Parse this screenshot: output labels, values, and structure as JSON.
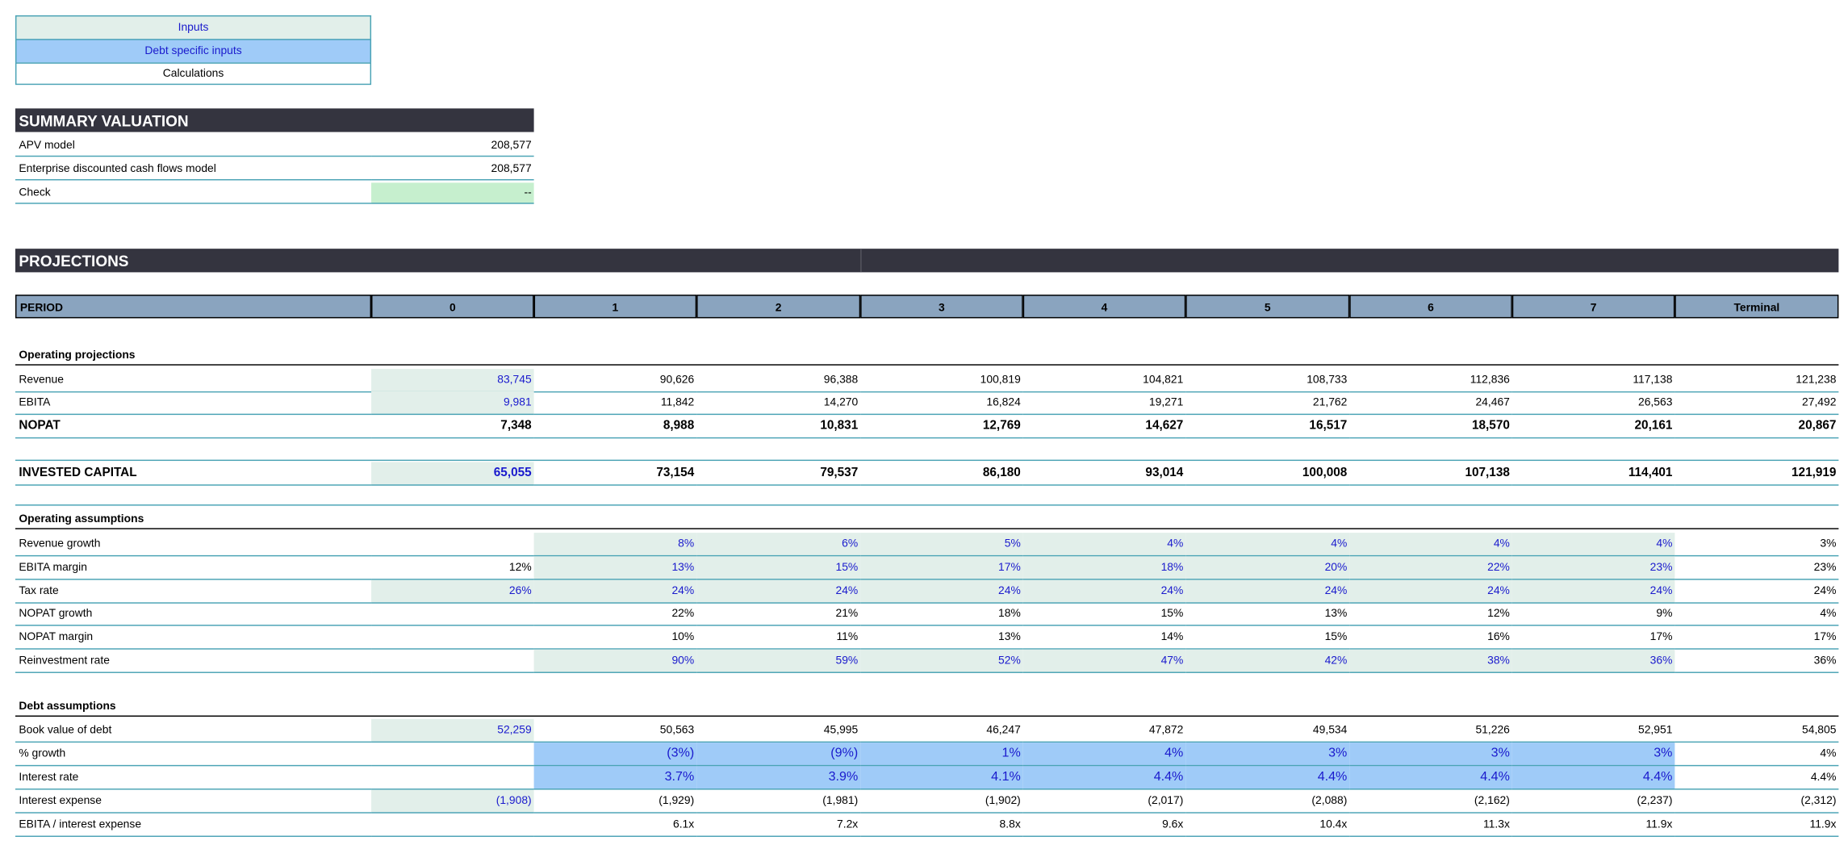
{
  "legend": [
    "Inputs",
    "Debt specific inputs",
    "Calculations"
  ],
  "summary": {
    "title": "SUMMARY VALUATION",
    "rows": [
      [
        "APV model",
        "208,577"
      ],
      [
        "Enterprise discounted cash flows model",
        "208,577"
      ],
      [
        "Check",
        "--"
      ]
    ]
  },
  "projections": {
    "title": "PROJECTIONS",
    "header": [
      "PERIOD",
      "0",
      "1",
      "2",
      "3",
      "4",
      "5",
      "6",
      "7",
      "Terminal"
    ],
    "blocks": [
      {
        "title": "Operating projections",
        "rows": [
          {
            "label": "Revenue",
            "values": [
              "83,745",
              "90,626",
              "96,388",
              "100,819",
              "104,821",
              "108,733",
              "112,836",
              "117,138",
              "121,238"
            ]
          },
          {
            "label": "EBITA",
            "values": [
              "9,981",
              "11,842",
              "14,270",
              "16,824",
              "19,271",
              "21,762",
              "24,467",
              "26,563",
              "27,492"
            ]
          },
          {
            "label": "NOPAT",
            "values": [
              "7,348",
              "8,988",
              "10,831",
              "12,769",
              "14,627",
              "16,517",
              "18,570",
              "20,161",
              "20,867"
            ]
          }
        ]
      },
      {
        "rows": [
          {
            "label": "INVESTED CAPITAL",
            "values": [
              "65,055",
              "73,154",
              "79,537",
              "86,180",
              "93,014",
              "100,008",
              "107,138",
              "114,401",
              "121,919"
            ]
          }
        ]
      },
      {
        "title": "Operating assumptions",
        "rows": [
          {
            "label": "Revenue growth",
            "values": [
              null,
              "8%",
              "6%",
              "5%",
              "4%",
              "4%",
              "4%",
              "4%",
              "3%"
            ]
          },
          {
            "label": "EBITA margin",
            "values": [
              "12%",
              "13%",
              "15%",
              "17%",
              "18%",
              "20%",
              "22%",
              "23%",
              "23%"
            ]
          },
          {
            "label": "Tax rate",
            "values": [
              "26%",
              "24%",
              "24%",
              "24%",
              "24%",
              "24%",
              "24%",
              "24%",
              "24%"
            ]
          },
          {
            "label": "NOPAT growth",
            "values": [
              null,
              "22%",
              "21%",
              "18%",
              "15%",
              "13%",
              "12%",
              "9%",
              "4%"
            ]
          },
          {
            "label": "NOPAT margin",
            "values": [
              null,
              "10%",
              "11%",
              "13%",
              "14%",
              "15%",
              "16%",
              "17%",
              "17%"
            ]
          },
          {
            "label": "Reinvestment rate",
            "values": [
              null,
              "90%",
              "59%",
              "52%",
              "47%",
              "42%",
              "38%",
              "36%",
              "36%"
            ]
          }
        ]
      },
      {
        "title": "Debt assumptions",
        "rows": [
          {
            "label": "Book value of debt",
            "values": [
              "52,259",
              "50,563",
              "45,995",
              "46,247",
              "47,872",
              "49,534",
              "51,226",
              "52,951",
              "54,805"
            ]
          },
          {
            "label": "% growth",
            "values": [
              null,
              "(3%)",
              "(9%)",
              "1%",
              "4%",
              "3%",
              "3%",
              "3%",
              "4%"
            ]
          },
          {
            "label": "Interest rate",
            "values": [
              null,
              "3.7%",
              "3.9%",
              "4.1%",
              "4.4%",
              "4.4%",
              "4.4%",
              "4.4%",
              "4.4%"
            ]
          },
          {
            "label": "Interest expense",
            "values": [
              "(1,908)",
              "(1,929)",
              "(1,981)",
              "(1,902)",
              "(2,017)",
              "(2,088)",
              "(2,162)",
              "(2,237)",
              "(2,312)"
            ]
          },
          {
            "label": "EBITA / interest expense",
            "values": [
              null,
              "6.1x",
              "7.2x",
              "8.8x",
              "9.6x",
              "10.4x",
              "11.3x",
              "11.9x",
              "11.9x"
            ]
          }
        ]
      }
    ]
  }
}
